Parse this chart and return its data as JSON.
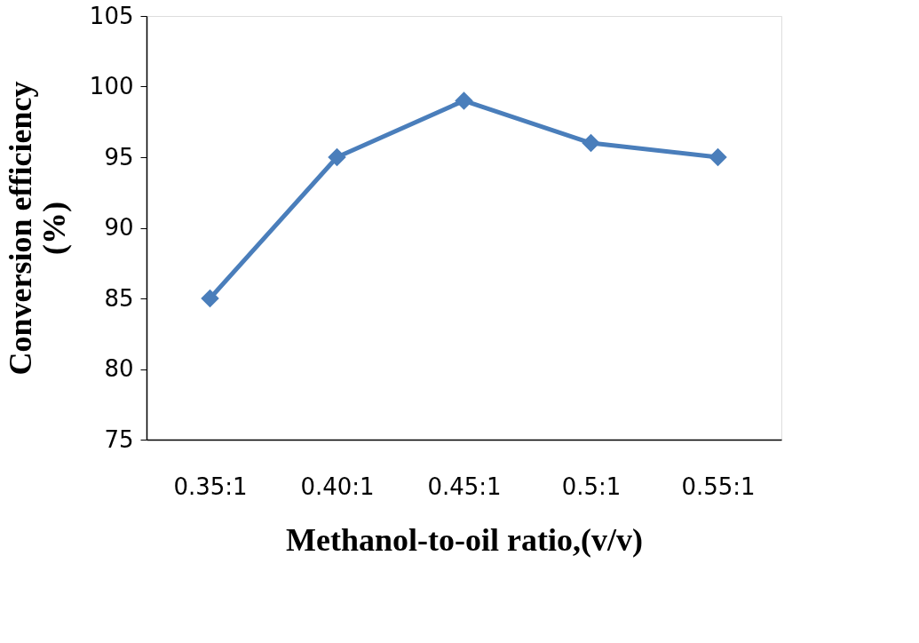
{
  "chart_data": {
    "type": "line",
    "categories": [
      "0.35:1",
      "0.40:1",
      "0.45:1",
      "0.5:1",
      "0.55:1"
    ],
    "series": [
      {
        "color": "#4a7ebb",
        "values": [
          85,
          95,
          99,
          96,
          95
        ]
      }
    ],
    "xlabel": "Methanol-to-oil ratio,(v/v)",
    "ylabel": "Conversion efficiency (%)",
    "ylim": [
      75,
      105
    ],
    "yticks": [
      75,
      80,
      85,
      90,
      95,
      100,
      105
    ],
    "grid": false,
    "marker": "diamond",
    "line_style": "solid"
  }
}
